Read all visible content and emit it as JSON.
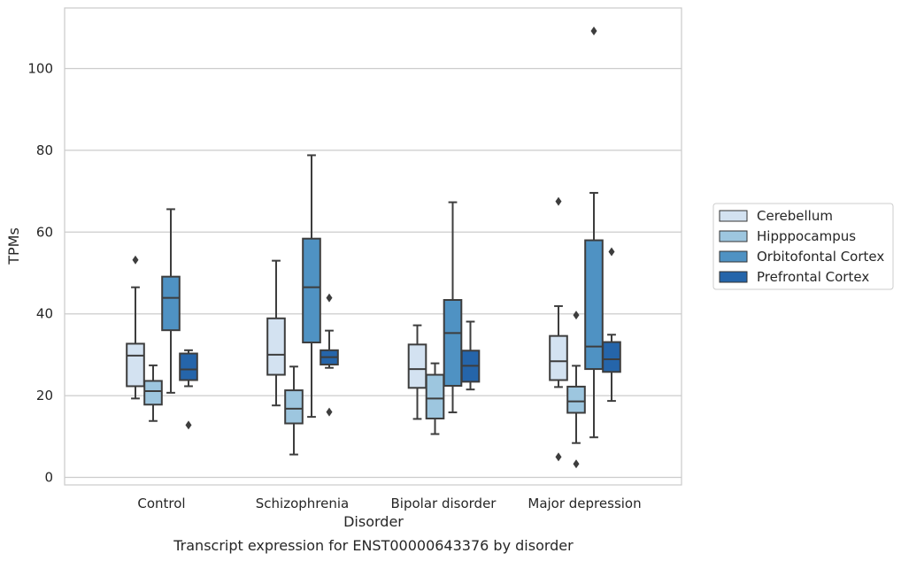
{
  "chart_data": {
    "type": "box",
    "caption": "Transcript expression for ENST00000643376 by disorder",
    "xlabel": "Disorder",
    "ylabel": "TPMs",
    "ylim": [
      -2,
      115
    ],
    "yticks": [
      0,
      20,
      40,
      60,
      80,
      100
    ],
    "grid": "horizontal",
    "legend_position": "right",
    "categories": [
      "Control",
      "Schizophrenia",
      "Bipolar disorder",
      "Major depression"
    ],
    "series": [
      {
        "name": "Cerebellum",
        "color": "#d3e2f1",
        "boxes": [
          {
            "whisker_low": 19.3,
            "q1": 22.3,
            "median": 29.8,
            "q3": 32.7,
            "whisker_high": 46.5,
            "outliers": [
              53.2
            ]
          },
          {
            "whisker_low": 17.6,
            "q1": 25.1,
            "median": 30.0,
            "q3": 38.9,
            "whisker_high": 53.0,
            "outliers": []
          },
          {
            "whisker_low": 14.3,
            "q1": 21.9,
            "median": 26.5,
            "q3": 32.5,
            "whisker_high": 37.2,
            "outliers": []
          },
          {
            "whisker_low": 22.1,
            "q1": 23.8,
            "median": 28.4,
            "q3": 34.6,
            "whisker_high": 41.9,
            "outliers": [
              5.0,
              67.5
            ]
          }
        ]
      },
      {
        "name": "Hipppocampus",
        "color": "#9dc6df",
        "boxes": [
          {
            "whisker_low": 13.8,
            "q1": 17.8,
            "median": 21.1,
            "q3": 23.6,
            "whisker_high": 27.4,
            "outliers": []
          },
          {
            "whisker_low": 5.6,
            "q1": 13.2,
            "median": 16.8,
            "q3": 21.3,
            "whisker_high": 27.1,
            "outliers": []
          },
          {
            "whisker_low": 10.6,
            "q1": 14.4,
            "median": 19.3,
            "q3": 25.1,
            "whisker_high": 27.9,
            "outliers": []
          },
          {
            "whisker_low": 8.4,
            "q1": 15.8,
            "median": 18.6,
            "q3": 22.2,
            "whisker_high": 27.3,
            "outliers": [
              3.3,
              39.7
            ]
          }
        ]
      },
      {
        "name": "Orbitofontal Cortex",
        "color": "#4f92c3",
        "boxes": [
          {
            "whisker_low": 20.7,
            "q1": 36.0,
            "median": 43.9,
            "q3": 49.1,
            "whisker_high": 65.6,
            "outliers": []
          },
          {
            "whisker_low": 14.8,
            "q1": 33.0,
            "median": 46.5,
            "q3": 58.4,
            "whisker_high": 78.8,
            "outliers": []
          },
          {
            "whisker_low": 15.9,
            "q1": 22.4,
            "median": 35.3,
            "q3": 43.4,
            "whisker_high": 67.3,
            "outliers": []
          },
          {
            "whisker_low": 9.8,
            "q1": 26.5,
            "median": 32.0,
            "q3": 58.0,
            "whisker_high": 69.6,
            "outliers": [
              109.2
            ]
          }
        ]
      },
      {
        "name": "Prefrontal Cortex",
        "color": "#2565aa",
        "boxes": [
          {
            "whisker_low": 22.3,
            "q1": 23.8,
            "median": 26.4,
            "q3": 30.3,
            "whisker_high": 31.1,
            "outliers": [
              12.8
            ]
          },
          {
            "whisker_low": 26.8,
            "q1": 27.6,
            "median": 29.4,
            "q3": 31.1,
            "whisker_high": 35.9,
            "outliers": [
              16.0,
              43.9
            ]
          },
          {
            "whisker_low": 21.5,
            "q1": 23.4,
            "median": 27.3,
            "q3": 31.0,
            "whisker_high": 38.1,
            "outliers": []
          },
          {
            "whisker_low": 18.7,
            "q1": 25.8,
            "median": 28.9,
            "q3": 33.1,
            "whisker_high": 34.9,
            "outliers": [
              55.2
            ]
          }
        ]
      }
    ]
  }
}
